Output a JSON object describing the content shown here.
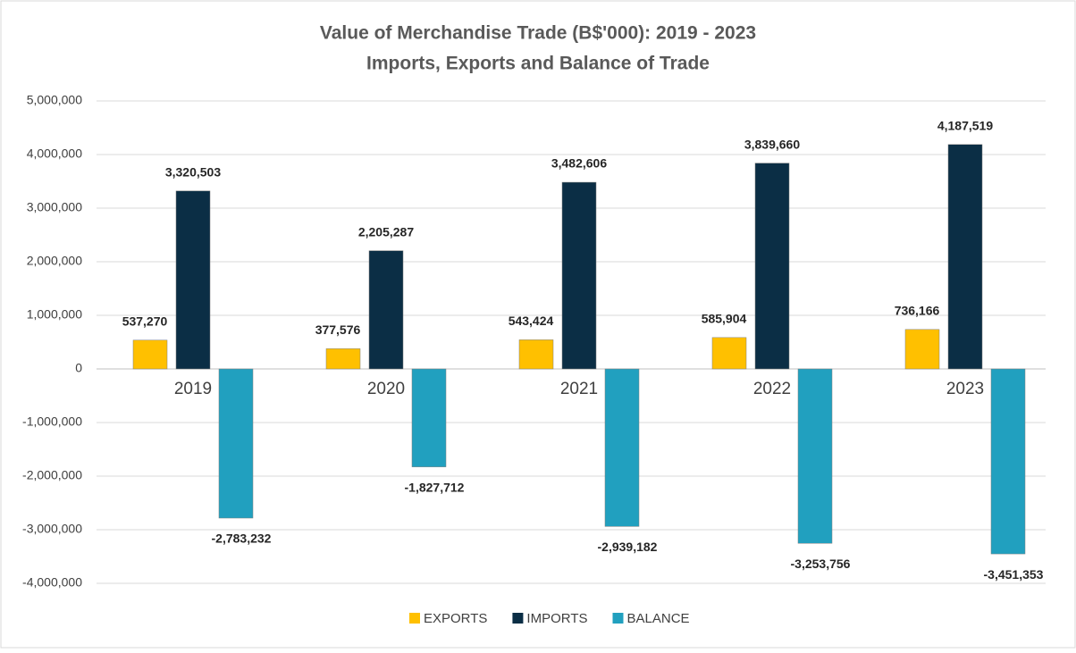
{
  "chart_data": {
    "type": "bar",
    "title": "Value of Merchandise Trade (B$'000): 2019 - 2023",
    "subtitle": "Imports, Exports and Balance of Trade",
    "categories": [
      "2019",
      "2020",
      "2021",
      "2022",
      "2023"
    ],
    "series": [
      {
        "name": "EXPORTS",
        "color": "#ffc000",
        "values": [
          537270,
          377576,
          543424,
          585904,
          736166
        ],
        "value_labels": [
          "537,270",
          "377,576",
          "543,424",
          "585,904",
          "736,166"
        ]
      },
      {
        "name": "IMPORTS",
        "color": "#0b2e45",
        "values": [
          3320503,
          2205287,
          3482606,
          3839660,
          4187519
        ],
        "value_labels": [
          "3,320,503",
          "2,205,287",
          "3,482,606",
          "3,839,660",
          "4,187,519"
        ]
      },
      {
        "name": "BALANCE",
        "color": "#21a0bf",
        "values": [
          -2783232,
          -1827712,
          -2939182,
          -3253756,
          -3451353
        ],
        "value_labels": [
          "-2,783,232",
          "-1,827,712",
          "-2,939,182",
          "-3,253,756",
          "-3,451,353"
        ]
      }
    ],
    "ylim": [
      -4000000,
      5000000
    ],
    "yticks": [
      {
        "value": -4000000,
        "label": "-4,000,000"
      },
      {
        "value": -3000000,
        "label": "-3,000,000"
      },
      {
        "value": -2000000,
        "label": "-2,000,000"
      },
      {
        "value": -1000000,
        "label": "-1,000,000"
      },
      0,
      {
        "value": 1000000,
        "label": "1,000,000"
      },
      {
        "value": 2000000,
        "label": "2,000,000"
      },
      {
        "value": 3000000,
        "label": "3,000,000"
      },
      {
        "value": 4000000,
        "label": "4,000,000"
      },
      {
        "value": 5000000,
        "label": "5,000,000"
      }
    ],
    "grid": true,
    "legend": "bottom"
  }
}
